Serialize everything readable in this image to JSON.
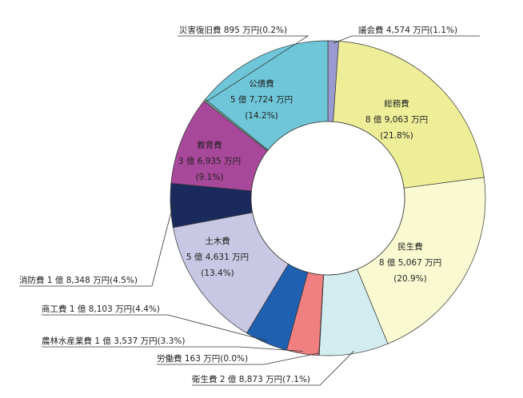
{
  "chart_data": {
    "type": "pie",
    "variant": "donut",
    "start": "top",
    "direction": "clockwise",
    "title": "",
    "slices": [
      {
        "name": "議会費",
        "amount": "4,574 万円",
        "percent": 1.1,
        "pct_text": "(1.1%)",
        "color": "#9a9ad0",
        "label_mode": "outside"
      },
      {
        "name": "総務費",
        "amount": "8 億 9,063 万円",
        "percent": 21.8,
        "pct_text": "(21.8%)",
        "color": "#eeee98",
        "label_mode": "inside"
      },
      {
        "name": "民生費",
        "amount": "8 億 5,067 万円",
        "percent": 20.9,
        "pct_text": "(20.9%)",
        "color": "#fafad2",
        "label_mode": "inside"
      },
      {
        "name": "衛生費",
        "amount": "2 億 8,873 万円",
        "percent": 7.1,
        "pct_text": "(7.1%)",
        "color": "#d2ecf0",
        "label_mode": "outside"
      },
      {
        "name": "労働費",
        "amount": "163 万円",
        "percent": 0.04,
        "pct_text": "(0.0%)",
        "color": "#ffffff",
        "label_mode": "outside"
      },
      {
        "name": "農林水産業費",
        "amount": "1 億 3,537 万円",
        "percent": 3.3,
        "pct_text": "(3.3%)",
        "color": "#f08080",
        "label_mode": "outside"
      },
      {
        "name": "商工費",
        "amount": "1 億 8,103 万円",
        "percent": 4.4,
        "pct_text": "(4.4%)",
        "color": "#2060b0",
        "label_mode": "outside"
      },
      {
        "name": "土木費",
        "amount": "5 億 4,631 万円",
        "percent": 13.4,
        "pct_text": "(13.4%)",
        "color": "#c8c8e4",
        "label_mode": "inside"
      },
      {
        "name": "消防費",
        "amount": "1 億 8,348 万円",
        "percent": 4.5,
        "pct_text": "(4.5%)",
        "color": "#1a2a5c",
        "label_mode": "outside"
      },
      {
        "name": "教育費",
        "amount": "3 億 6,935 万円",
        "percent": 9.1,
        "pct_text": "(9.1%)",
        "color": "#a8489a",
        "label_mode": "inside"
      },
      {
        "name": "災害復旧費",
        "amount": "895 万円",
        "percent": 0.2,
        "pct_text": "(0.2%)",
        "color": "#70c0a0",
        "label_mode": "outside"
      },
      {
        "name": "公債費",
        "amount": "5 億 7,724 万円",
        "percent": 14.2,
        "pct_text": "(14.2%)",
        "color": "#6ec6d8",
        "label_mode": "inside"
      }
    ]
  }
}
